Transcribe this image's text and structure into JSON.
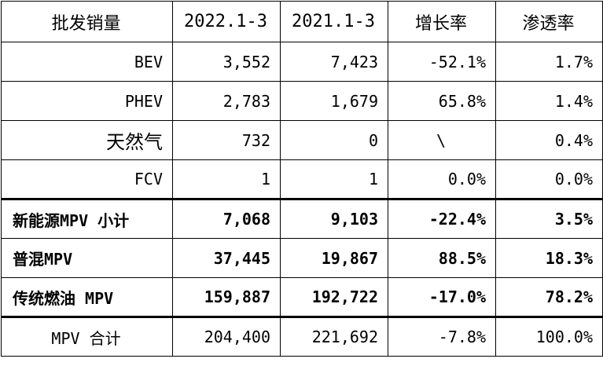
{
  "table": {
    "header": [
      "批发销量",
      "2022.1-3",
      "2021.1-3",
      "增长率",
      "渗透率"
    ],
    "rows": [
      {
        "label": "BEV",
        "v2022": "3,552",
        "v2021": "7,423",
        "growth": "-52.1%",
        "penetration": "1.7%"
      },
      {
        "label": "PHEV",
        "v2022": "2,783",
        "v2021": "1,679",
        "growth": "65.8%",
        "penetration": "1.4%"
      },
      {
        "label": "天然气",
        "v2022": "732",
        "v2021": "0",
        "growth": "\\",
        "penetration": "0.4%"
      },
      {
        "label": "FCV",
        "v2022": "1",
        "v2021": "1",
        "growth": "0.0%",
        "penetration": "0.0%"
      },
      {
        "label": "新能源MPV 小计",
        "v2022": "7,068",
        "v2021": "9,103",
        "growth": "-22.4%",
        "penetration": "3.5%"
      },
      {
        "label": "普混MPV",
        "v2022": "37,445",
        "v2021": "19,867",
        "growth": "88.5%",
        "penetration": "18.3%"
      },
      {
        "label": "传统燃油 MPV",
        "v2022": "159,887",
        "v2021": "192,722",
        "growth": "-17.0%",
        "penetration": "78.2%"
      },
      {
        "label": "MPV 合计",
        "v2022": "204,400",
        "v2021": "221,692",
        "growth": "-7.8%",
        "penetration": "100.0%"
      }
    ]
  }
}
